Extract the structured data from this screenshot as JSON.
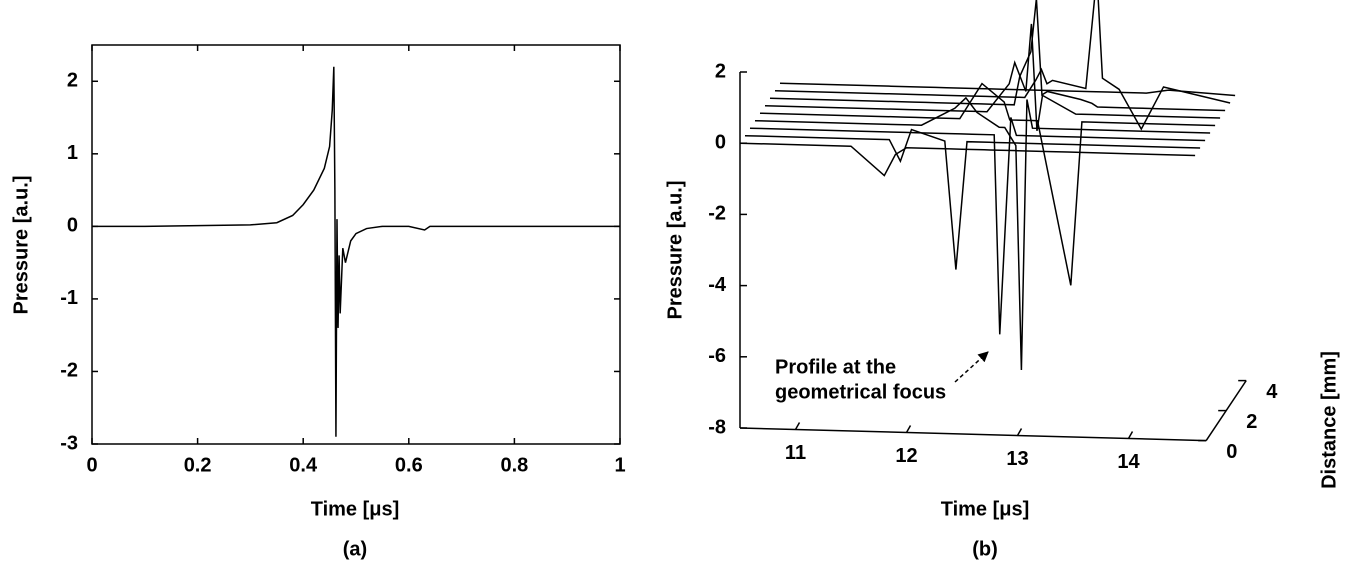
{
  "chart_data": [
    {
      "type": "line",
      "panel_label": "(a)",
      "xlabel": "Time [μs]",
      "ylabel": "Pressure [a.u.]",
      "color": "#000000",
      "x": [
        0,
        0.1,
        0.2,
        0.3,
        0.35,
        0.38,
        0.4,
        0.42,
        0.44,
        0.45,
        0.455,
        0.458,
        0.46,
        0.462,
        0.464,
        0.466,
        0.468,
        0.47,
        0.475,
        0.48,
        0.49,
        0.5,
        0.52,
        0.55,
        0.6,
        0.63,
        0.64,
        0.7,
        0.8,
        0.9,
        1
      ],
      "values": [
        0,
        0,
        0.01,
        0.02,
        0.05,
        0.15,
        0.3,
        0.5,
        0.8,
        1.1,
        1.6,
        2.2,
        0.5,
        -2.9,
        0.1,
        -1.4,
        -0.4,
        -1.2,
        -0.3,
        -0.5,
        -0.2,
        -0.1,
        -0.03,
        0,
        0,
        -0.05,
        0,
        0,
        0,
        0,
        0
      ],
      "xlim": [
        0,
        1
      ],
      "ylim": [
        -3,
        2.5
      ],
      "xticks": [
        0,
        0.2,
        0.4,
        0.6,
        0.8,
        1
      ],
      "yticks": [
        -3,
        -2,
        -1,
        0,
        1,
        2
      ]
    },
    {
      "type": "waterfall3d",
      "panel_label": "(b)",
      "xlabel": "Time [μs]",
      "ylabel": "Pressure [a.u.]",
      "zlabel": "Distance [mm]",
      "color": "#000000",
      "annotation": [
        "Profile at the",
        "geometrical focus"
      ],
      "x": [
        10.5,
        11.5,
        11.8,
        11.9,
        12.0,
        12.3,
        12.4,
        12.5,
        12.7,
        12.75,
        12.85,
        12.9,
        12.95,
        13.0,
        13.3,
        13.4,
        13.45,
        13.6,
        13.8,
        14.0,
        14.6
      ],
      "series": [
        {
          "distance": 0,
          "values": [
            0,
            0,
            -0.8,
            -0.2,
            0,
            0,
            0,
            0,
            0,
            0,
            0,
            0,
            0,
            0,
            0,
            0,
            0,
            0,
            0,
            0,
            0
          ]
        },
        {
          "distance": 0.5,
          "values": [
            0,
            0,
            0,
            -0.6,
            0.3,
            0,
            -3.6,
            0,
            0,
            0,
            0,
            0,
            0,
            0,
            0,
            0,
            0,
            0,
            0,
            0,
            0
          ]
        },
        {
          "distance": 1,
          "values": [
            0,
            0,
            0,
            0,
            0,
            0,
            0,
            0,
            0,
            -5.6,
            0.5,
            0,
            0,
            0,
            0,
            0,
            0,
            0,
            0,
            0,
            0
          ]
        },
        {
          "distance": 1.5,
          "values": [
            0,
            0,
            0,
            0,
            0,
            0.5,
            0.8,
            0.4,
            0,
            0,
            -0.5,
            -6.8,
            0.8,
            0,
            0,
            0,
            0,
            0,
            0,
            0,
            0
          ]
        },
        {
          "distance": 2,
          "values": [
            0,
            0,
            0,
            0,
            0,
            0,
            0.5,
            1,
            0.5,
            0,
            0,
            0,
            0,
            0,
            -4.6,
            0,
            0,
            0,
            0,
            0,
            0
          ]
        },
        {
          "distance": 2.5,
          "values": [
            0,
            0,
            0,
            0,
            0,
            0,
            0,
            0,
            0.8,
            1.4,
            0.6,
            2.5,
            -0.5,
            0.5,
            0,
            0,
            0,
            0,
            0,
            0,
            0
          ]
        },
        {
          "distance": 3,
          "values": [
            0,
            0,
            0,
            0,
            0,
            0,
            0,
            0,
            0,
            0.8,
            1.5,
            3,
            0.3,
            0.4,
            0.2,
            0.1,
            0,
            0,
            0,
            0,
            0
          ]
        },
        {
          "distance": 3.5,
          "values": [
            0,
            0,
            0,
            0,
            0,
            0,
            0,
            0,
            0,
            0,
            0.5,
            0.8,
            0.4,
            0.5,
            0.3,
            3.5,
            0.6,
            0.3,
            -0.8,
            0.4,
            0
          ]
        },
        {
          "distance": 4,
          "values": [
            0,
            0,
            0,
            0,
            0,
            0,
            0,
            0,
            0,
            0,
            0,
            0,
            0,
            0,
            0,
            0,
            0,
            0,
            0,
            0.1,
            0
          ]
        }
      ],
      "xlim": [
        10.5,
        14.7
      ],
      "ylim": [
        -8,
        2
      ],
      "zlim": [
        0,
        4
      ],
      "xticks": [
        11,
        12,
        13,
        14
      ],
      "yticks": [
        -8,
        -6,
        -4,
        -2,
        0,
        2
      ],
      "zticks": [
        0,
        2,
        4
      ]
    }
  ]
}
